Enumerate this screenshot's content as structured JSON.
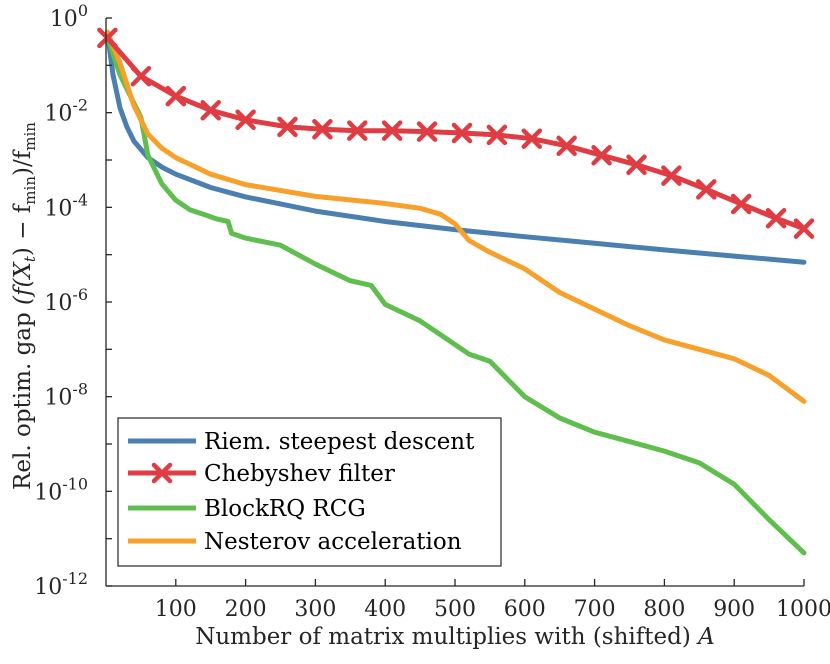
{
  "chart_data": {
    "type": "line",
    "title": "",
    "xlabel_prefix": "Number of matrix multiplies with (shifted) ",
    "xlabel_var": "A",
    "ylabel_prefix": "Rel. optim. gap ",
    "ylabel_math": "(f(X",
    "ylabel_sub_t": "t",
    "ylabel_mid": ") − f",
    "ylabel_sub_min": "min",
    "ylabel_end": ")/f",
    "ylabel_sub_min2": "min",
    "xlim": [
      0,
      1000
    ],
    "ylim_exp": [
      -12,
      0
    ],
    "yscale": "log",
    "grid": false,
    "legend_position": "bottom-left",
    "x_ticks": [
      "100",
      "200",
      "300",
      "400",
      "500",
      "600",
      "700",
      "800",
      "900",
      "1000"
    ],
    "x_tick_values": [
      100,
      200,
      300,
      400,
      500,
      600,
      700,
      800,
      900,
      1000
    ],
    "y_ticks": [
      {
        "exp": 0,
        "base": "10",
        "sup": "0"
      },
      {
        "exp": -2,
        "base": "10",
        "sup": "-2"
      },
      {
        "exp": -4,
        "base": "10",
        "sup": "-4"
      },
      {
        "exp": -6,
        "base": "10",
        "sup": "-6"
      },
      {
        "exp": -8,
        "base": "10",
        "sup": "-8"
      },
      {
        "exp": -10,
        "base": "10",
        "sup": "-10"
      },
      {
        "exp": -12,
        "base": "10",
        "sup": "-12"
      }
    ],
    "series": [
      {
        "name": "Riem. steepest descent",
        "color": "#4a7fb0",
        "marker": "none",
        "x": [
          2,
          10,
          20,
          30,
          40,
          60,
          80,
          100,
          150,
          200,
          300,
          400,
          500,
          600,
          700,
          800,
          900,
          1000
        ],
        "log10y": [
          -0.3,
          -1.2,
          -1.9,
          -2.3,
          -2.6,
          -2.95,
          -3.15,
          -3.3,
          -3.58,
          -3.78,
          -4.08,
          -4.3,
          -4.47,
          -4.62,
          -4.76,
          -4.9,
          -5.03,
          -5.16
        ]
      },
      {
        "name": "Chebyshev filter",
        "color": "#e03c43",
        "marker": "x",
        "x": [
          2,
          50,
          100,
          150,
          200,
          260,
          310,
          360,
          410,
          460,
          510,
          560,
          610,
          660,
          710,
          760,
          810,
          860,
          910,
          960,
          1000
        ],
        "log10y": [
          -0.42,
          -1.23,
          -1.65,
          -1.95,
          -2.15,
          -2.3,
          -2.35,
          -2.38,
          -2.38,
          -2.4,
          -2.43,
          -2.47,
          -2.55,
          -2.7,
          -2.9,
          -3.1,
          -3.33,
          -3.62,
          -3.93,
          -4.23,
          -4.45
        ]
      },
      {
        "name": "BlockRQ RCG",
        "color": "#5fbe4e",
        "marker": "none",
        "x": [
          2,
          20,
          40,
          50,
          55,
          60,
          80,
          100,
          120,
          140,
          160,
          175,
          180,
          200,
          250,
          300,
          350,
          380,
          400,
          450,
          500,
          520,
          550,
          600,
          650,
          700,
          750,
          800,
          850,
          900,
          950,
          1000
        ],
        "log10y": [
          -0.4,
          -1.2,
          -1.8,
          -2.1,
          -2.5,
          -2.9,
          -3.5,
          -3.85,
          -4.05,
          -4.15,
          -4.25,
          -4.3,
          -4.55,
          -4.65,
          -4.8,
          -5.2,
          -5.55,
          -5.65,
          -6.05,
          -6.4,
          -6.9,
          -7.1,
          -7.25,
          -8.0,
          -8.45,
          -8.75,
          -8.95,
          -9.15,
          -9.4,
          -9.85,
          -10.6,
          -11.3
        ]
      },
      {
        "name": "Nesterov acceleration",
        "color": "#f7a02b",
        "marker": "none",
        "x": [
          2,
          20,
          40,
          60,
          80,
          100,
          150,
          200,
          300,
          400,
          450,
          480,
          500,
          520,
          550,
          600,
          650,
          700,
          750,
          800,
          850,
          900,
          950,
          1000
        ],
        "log10y": [
          -0.3,
          -0.95,
          -1.85,
          -2.45,
          -2.75,
          -2.95,
          -3.3,
          -3.52,
          -3.77,
          -3.92,
          -4.02,
          -4.15,
          -4.35,
          -4.7,
          -4.95,
          -5.3,
          -5.8,
          -6.15,
          -6.5,
          -6.8,
          -7.0,
          -7.2,
          -7.55,
          -8.1
        ]
      }
    ]
  }
}
